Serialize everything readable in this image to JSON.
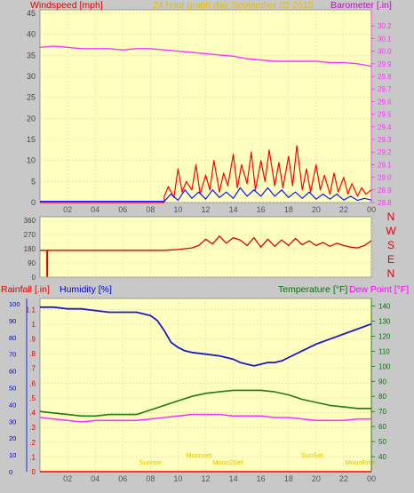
{
  "header": {
    "left_label": "Windspeed [mph]",
    "center_label": "24 hour graph day   September 02 2015",
    "right_label": "Barometer [.in]"
  },
  "wind_dir_labels": [
    "N",
    "W",
    "S",
    "E",
    "N"
  ],
  "bottom_header": {
    "rainfall": "Rainfall [.in]",
    "humidity": "Humidity [%]",
    "temperature": "Temperature [°F]",
    "dewpoint": "Dew Point [°F]"
  },
  "x_tick_labels": [
    "02",
    "04",
    "06",
    "08",
    "10",
    "12",
    "14",
    "16",
    "18",
    "20",
    "22",
    "00"
  ],
  "annotations": [
    {
      "text": "Sunrise",
      "hour": 8.0
    },
    {
      "text": "Moonset",
      "hour": 11.5
    },
    {
      "text": "Moon2Set",
      "hour": 13.6
    },
    {
      "text": "SunSet",
      "hour": 19.7
    },
    {
      "text": "MoonRise",
      "hour": 23.2
    }
  ],
  "colors": {
    "panel_bg": "#ffffc0",
    "frame": "#c8c8c8",
    "windspeed": "#ff0000",
    "gust_blue": "#1010ff",
    "barometer": "#ff33ff",
    "wind_dir": "#dd0000",
    "humidity": "#1a1acc",
    "temperature": "#1a7a1a",
    "dewpoint": "#ff33ff",
    "rainfall": "#ff0000",
    "axis_left": "#444444",
    "axis_blue": "#0000dd",
    "axis_red": "#dd0000",
    "axis_green": "#007700",
    "annotation": "#e0c000"
  },
  "chart_data": [
    {
      "type": "line",
      "title": "24 hour graph day   September 02 2015",
      "xlabel": "",
      "x_ticks": [
        "02",
        "04",
        "06",
        "08",
        "10",
        "12",
        "14",
        "16",
        "18",
        "20",
        "22",
        "00"
      ],
      "series": [
        {
          "name": "Windspeed [mph]",
          "axis": "left",
          "ylim": [
            0,
            45
          ],
          "y_ticks": [
            0,
            5,
            10,
            15,
            20,
            25,
            30,
            35,
            40,
            45
          ],
          "points": [
            [
              0.0,
              0
            ],
            [
              9.0,
              0
            ],
            [
              9.0,
              1.5
            ],
            [
              9.3,
              3.8
            ],
            [
              9.7,
              1.2
            ],
            [
              10.0,
              8.0
            ],
            [
              10.3,
              2.5
            ],
            [
              10.6,
              5.0
            ],
            [
              11.0,
              3.0
            ],
            [
              11.3,
              9.0
            ],
            [
              11.6,
              2.0
            ],
            [
              12.0,
              6.5
            ],
            [
              12.3,
              3.0
            ],
            [
              12.6,
              10.0
            ],
            [
              13.0,
              2.5
            ],
            [
              13.3,
              7.0
            ],
            [
              13.6,
              4.0
            ],
            [
              14.0,
              11.5
            ],
            [
              14.3,
              3.5
            ],
            [
              14.6,
              9.0
            ],
            [
              15.0,
              4.5
            ],
            [
              15.3,
              12.0
            ],
            [
              15.6,
              3.0
            ],
            [
              16.0,
              10.0
            ],
            [
              16.3,
              5.0
            ],
            [
              16.6,
              12.5
            ],
            [
              17.0,
              4.0
            ],
            [
              17.3,
              9.5
            ],
            [
              17.6,
              3.5
            ],
            [
              18.0,
              11.0
            ],
            [
              18.3,
              4.0
            ],
            [
              18.6,
              13.5
            ],
            [
              19.0,
              3.0
            ],
            [
              19.3,
              8.0
            ],
            [
              19.6,
              2.5
            ],
            [
              20.0,
              9.0
            ],
            [
              20.3,
              3.0
            ],
            [
              20.6,
              6.5
            ],
            [
              21.0,
              2.0
            ],
            [
              21.3,
              7.0
            ],
            [
              21.6,
              2.5
            ],
            [
              22.0,
              6.0
            ],
            [
              22.3,
              2.0
            ],
            [
              22.6,
              4.5
            ],
            [
              23.0,
              1.5
            ],
            [
              23.3,
              3.5
            ],
            [
              23.6,
              2.0
            ],
            [
              24.0,
              3.0
            ]
          ]
        },
        {
          "name": "Gust / average (blue)",
          "axis": "left",
          "points": [
            [
              0.0,
              0.3
            ],
            [
              9.0,
              0.3
            ],
            [
              9.5,
              2.0
            ],
            [
              10.0,
              0.5
            ],
            [
              10.5,
              3.0
            ],
            [
              11.0,
              1.0
            ],
            [
              11.5,
              2.5
            ],
            [
              12.0,
              0.8
            ],
            [
              12.5,
              3.0
            ],
            [
              13.0,
              1.2
            ],
            [
              13.5,
              2.5
            ],
            [
              14.0,
              1.0
            ],
            [
              14.5,
              3.5
            ],
            [
              15.0,
              1.5
            ],
            [
              15.5,
              3.0
            ],
            [
              16.0,
              1.5
            ],
            [
              16.5,
              3.5
            ],
            [
              17.0,
              1.5
            ],
            [
              17.5,
              3.0
            ],
            [
              18.0,
              1.2
            ],
            [
              18.5,
              2.5
            ],
            [
              19.0,
              1.0
            ],
            [
              19.5,
              2.5
            ],
            [
              20.0,
              0.8
            ],
            [
              20.5,
              2.0
            ],
            [
              21.0,
              0.8
            ],
            [
              21.5,
              2.0
            ],
            [
              22.0,
              0.6
            ],
            [
              22.5,
              1.5
            ],
            [
              23.0,
              0.5
            ],
            [
              23.5,
              1.0
            ],
            [
              24.0,
              0.6
            ]
          ]
        },
        {
          "name": "Barometer [.in]",
          "axis": "right",
          "ylim": [
            28.8,
            30.3
          ],
          "y_ticks": [
            28.8,
            28.9,
            29.0,
            29.1,
            29.2,
            29.3,
            29.4,
            29.5,
            29.6,
            29.7,
            29.8,
            29.9,
            30.0,
            30.1,
            30.2
          ],
          "points": [
            [
              0.0,
              30.03
            ],
            [
              1.0,
              30.04
            ],
            [
              2.0,
              30.03
            ],
            [
              3.0,
              30.02
            ],
            [
              4.0,
              30.02
            ],
            [
              5.0,
              30.02
            ],
            [
              6.0,
              30.01
            ],
            [
              7.0,
              30.02
            ],
            [
              8.0,
              30.02
            ],
            [
              9.0,
              30.01
            ],
            [
              10.0,
              30.0
            ],
            [
              11.0,
              29.99
            ],
            [
              12.0,
              29.98
            ],
            [
              13.0,
              29.97
            ],
            [
              14.0,
              29.96
            ],
            [
              15.0,
              29.94
            ],
            [
              16.0,
              29.93
            ],
            [
              17.0,
              29.92
            ],
            [
              18.0,
              29.92
            ],
            [
              19.0,
              29.92
            ],
            [
              20.0,
              29.92
            ],
            [
              21.0,
              29.91
            ],
            [
              22.0,
              29.91
            ],
            [
              23.0,
              29.9
            ],
            [
              24.0,
              29.88
            ]
          ]
        }
      ]
    },
    {
      "type": "line",
      "ylabel": "Wind direction",
      "ylim": [
        0,
        360
      ],
      "y_ticks": [
        0,
        90,
        180,
        270,
        360
      ],
      "right_labels": [
        "N",
        "W",
        "S",
        "E",
        "N"
      ],
      "series": [
        {
          "name": "Wind direction",
          "points": [
            [
              0.0,
              170
            ],
            [
              0.5,
              170
            ],
            [
              0.5,
              5
            ],
            [
              0.55,
              5
            ],
            [
              0.55,
              170
            ],
            [
              9.0,
              170
            ],
            [
              10.0,
              175
            ],
            [
              11.0,
              185
            ],
            [
              11.5,
              200
            ],
            [
              12.0,
              240
            ],
            [
              12.5,
              210
            ],
            [
              13.0,
              260
            ],
            [
              13.5,
              215
            ],
            [
              14.0,
              250
            ],
            [
              14.5,
              235
            ],
            [
              15.0,
              200
            ],
            [
              15.5,
              250
            ],
            [
              16.0,
              190
            ],
            [
              16.5,
              240
            ],
            [
              17.0,
              195
            ],
            [
              17.5,
              235
            ],
            [
              18.0,
              200
            ],
            [
              18.5,
              245
            ],
            [
              19.0,
              205
            ],
            [
              19.5,
              230
            ],
            [
              20.0,
              200
            ],
            [
              20.5,
              220
            ],
            [
              21.0,
              195
            ],
            [
              21.5,
              215
            ],
            [
              22.0,
              200
            ],
            [
              22.5,
              190
            ],
            [
              23.0,
              185
            ],
            [
              23.5,
              200
            ],
            [
              24.0,
              230
            ]
          ]
        }
      ]
    },
    {
      "type": "line",
      "x_ticks": [
        "02",
        "04",
        "06",
        "08",
        "10",
        "12",
        "14",
        "16",
        "18",
        "20",
        "22",
        "00"
      ],
      "series": [
        {
          "name": "Humidity [%]",
          "axis": "humidity",
          "ylim": [
            0,
            100
          ],
          "y_ticks": [
            0,
            10,
            20,
            30,
            40,
            50,
            60,
            70,
            80,
            90,
            100
          ],
          "points": [
            [
              0.0,
              98
            ],
            [
              1.0,
              98
            ],
            [
              2.0,
              97
            ],
            [
              3.0,
              97
            ],
            [
              4.0,
              96
            ],
            [
              5.0,
              95
            ],
            [
              6.0,
              95
            ],
            [
              7.0,
              95
            ],
            [
              8.0,
              93
            ],
            [
              8.5,
              90
            ],
            [
              9.0,
              84
            ],
            [
              9.5,
              77
            ],
            [
              10.0,
              74
            ],
            [
              10.5,
              72
            ],
            [
              11.0,
              71
            ],
            [
              12.0,
              70
            ],
            [
              13.0,
              69
            ],
            [
              14.0,
              67
            ],
            [
              14.5,
              65
            ],
            [
              15.0,
              64
            ],
            [
              15.5,
              63
            ],
            [
              16.0,
              64
            ],
            [
              16.5,
              65
            ],
            [
              17.0,
              65
            ],
            [
              17.5,
              66
            ],
            [
              18.0,
              68
            ],
            [
              19.0,
              72
            ],
            [
              20.0,
              76
            ],
            [
              21.0,
              79
            ],
            [
              22.0,
              82
            ],
            [
              23.0,
              85
            ],
            [
              24.0,
              88
            ]
          ]
        },
        {
          "name": "Temperature [°F]",
          "axis": "temperature",
          "ylim": [
            30,
            145
          ],
          "y_ticks": [
            40,
            50,
            60,
            70,
            80,
            90,
            100,
            110,
            120,
            130,
            140
          ],
          "points": [
            [
              0.0,
              70
            ],
            [
              1.0,
              69
            ],
            [
              2.0,
              68
            ],
            [
              3.0,
              67
            ],
            [
              4.0,
              67
            ],
            [
              5.0,
              68
            ],
            [
              6.0,
              68
            ],
            [
              7.0,
              68
            ],
            [
              8.0,
              71
            ],
            [
              9.0,
              74
            ],
            [
              10.0,
              77
            ],
            [
              11.0,
              80
            ],
            [
              12.0,
              82
            ],
            [
              13.0,
              83
            ],
            [
              14.0,
              84
            ],
            [
              15.0,
              84
            ],
            [
              16.0,
              84
            ],
            [
              17.0,
              83
            ],
            [
              18.0,
              81
            ],
            [
              19.0,
              78
            ],
            [
              20.0,
              76
            ],
            [
              21.0,
              74
            ],
            [
              22.0,
              73
            ],
            [
              23.0,
              72
            ],
            [
              24.0,
              72
            ]
          ]
        },
        {
          "name": "Dew Point [°F]",
          "axis": "temperature",
          "points": [
            [
              0.0,
              66
            ],
            [
              1.0,
              65
            ],
            [
              2.0,
              64
            ],
            [
              3.0,
              63
            ],
            [
              4.0,
              64
            ],
            [
              5.0,
              64
            ],
            [
              6.0,
              64
            ],
            [
              7.0,
              64
            ],
            [
              8.0,
              65
            ],
            [
              9.0,
              66
            ],
            [
              10.0,
              67
            ],
            [
              11.0,
              68
            ],
            [
              12.0,
              68
            ],
            [
              13.0,
              68
            ],
            [
              14.0,
              67
            ],
            [
              15.0,
              67
            ],
            [
              16.0,
              67
            ],
            [
              17.0,
              66
            ],
            [
              18.0,
              66
            ],
            [
              19.0,
              65
            ],
            [
              20.0,
              64
            ],
            [
              21.0,
              64
            ],
            [
              22.0,
              64
            ],
            [
              23.0,
              65
            ],
            [
              24.0,
              65
            ]
          ]
        },
        {
          "name": "Rainfall [.in]",
          "axis": "rainfall",
          "ylim": [
            0,
            1.15
          ],
          "y_ticks": [
            0,
            0.1,
            0.2,
            0.3,
            0.4,
            0.5,
            0.6,
            0.7,
            0.8,
            0.9,
            1.0,
            1.1
          ],
          "points": [
            [
              0.0,
              0
            ],
            [
              24.0,
              0
            ]
          ]
        }
      ]
    }
  ]
}
